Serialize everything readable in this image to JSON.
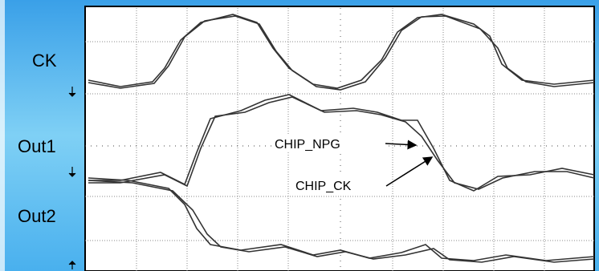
{
  "labels": {
    "ck": "CK",
    "out1": "Out1",
    "out2": "Out2"
  },
  "annotations": [
    "CHIP_NPG",
    "CHIP_CK"
  ]
}
